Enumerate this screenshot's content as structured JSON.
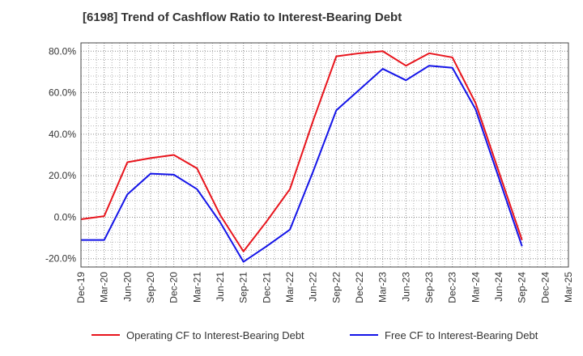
{
  "chart_data": {
    "type": "line",
    "title": "[6198]  Trend of Cashflow Ratio to Interest-Bearing Debt",
    "x": [
      "Dec-19",
      "Mar-20",
      "Jun-20",
      "Sep-20",
      "Dec-20",
      "Mar-21",
      "Jun-21",
      "Sep-21",
      "Dec-21",
      "Mar-22",
      "Jun-22",
      "Sep-22",
      "Dec-22",
      "Mar-23",
      "Jun-23",
      "Sep-23",
      "Dec-23",
      "Mar-24",
      "Jun-24",
      "Sep-24",
      "Dec-24",
      "Mar-25"
    ],
    "ylim": [
      -24,
      84
    ],
    "yticks": [
      -20,
      0,
      20,
      40,
      60,
      80
    ],
    "ytick_labels": [
      "-20.0%",
      "0.0%",
      "20.0%",
      "40.0%",
      "60.0%",
      "80.0%"
    ],
    "grid": true,
    "legend_position": "bottom",
    "series": [
      {
        "name": "Operating CF to Interest-Bearing Debt",
        "color": "#e8141c",
        "values": [
          -1.0,
          0.5,
          26.5,
          28.5,
          30.0,
          23.5,
          1.0,
          -16.5,
          -2.0,
          13.5,
          46.5,
          77.5,
          79.0,
          80.0,
          73.0,
          79.0,
          77.0,
          55.0,
          22.0,
          -11.0,
          null,
          null
        ]
      },
      {
        "name": "Free CF to Interest-Bearing Debt",
        "color": "#1414e8",
        "values": [
          -11.0,
          -11.0,
          11.0,
          21.0,
          20.5,
          13.5,
          -2.5,
          -21.5,
          -14.0,
          -6.0,
          22.0,
          51.5,
          61.5,
          71.5,
          66.0,
          73.0,
          72.0,
          52.0,
          19.0,
          -14.0,
          null,
          null
        ]
      }
    ]
  }
}
